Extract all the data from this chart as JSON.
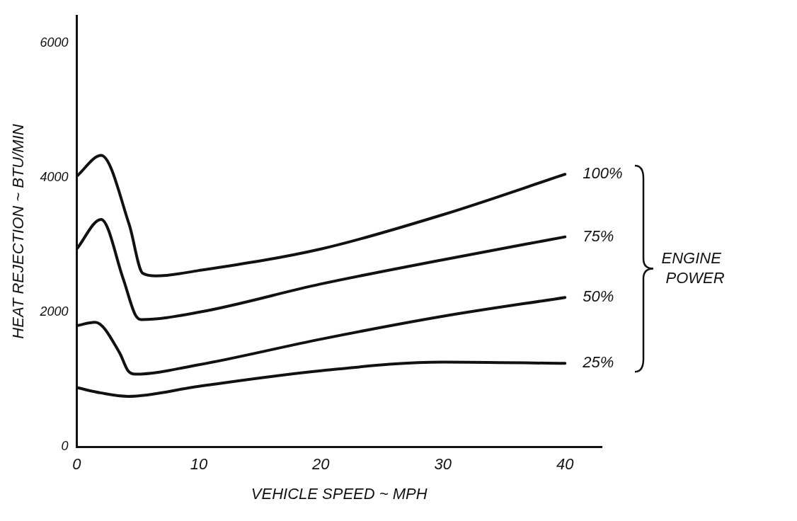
{
  "chart_data": {
    "type": "line",
    "xlabel": "VEHICLE SPEED ~ MPH",
    "ylabel": "HEAT REJECTION ~ BTU/MIN",
    "series": [
      {
        "name": "100%",
        "color": "#111111",
        "x": [
          0,
          2,
          4.3,
          5.4,
          6.5,
          10,
          20,
          30,
          40
        ],
        "values": [
          4020,
          4330,
          3300,
          2580,
          2540,
          2620,
          2940,
          3450,
          4050
        ]
      },
      {
        "name": "75%",
        "color": "#111111",
        "x": [
          0,
          2,
          3.8,
          4.8,
          5.3,
          10,
          20,
          30,
          40
        ],
        "values": [
          2940,
          3380,
          2500,
          1960,
          1890,
          2000,
          2420,
          2780,
          3120
        ]
      },
      {
        "name": "50%",
        "color": "#111111",
        "x": [
          0,
          1.5,
          3.5,
          4.2,
          4.8,
          10,
          20,
          30,
          40
        ],
        "values": [
          1800,
          1850,
          1400,
          1130,
          1080,
          1220,
          1600,
          1940,
          2220
        ]
      },
      {
        "name": "25%",
        "color": "#111111",
        "x": [
          0,
          2,
          4.2,
          10,
          20,
          30,
          40
        ],
        "values": [
          880,
          800,
          750,
          900,
          1130,
          1260,
          1240
        ]
      }
    ],
    "xlim": [
      0,
      43
    ],
    "ylim": [
      0,
      6400
    ],
    "xticks": [
      0,
      10,
      20,
      30,
      40
    ],
    "yticks": [
      0,
      2000,
      4000,
      6000
    ],
    "grid": false,
    "legend": false,
    "marker": "none",
    "line_style": "solid",
    "annotations": [
      "ENGINE POWER"
    ]
  }
}
